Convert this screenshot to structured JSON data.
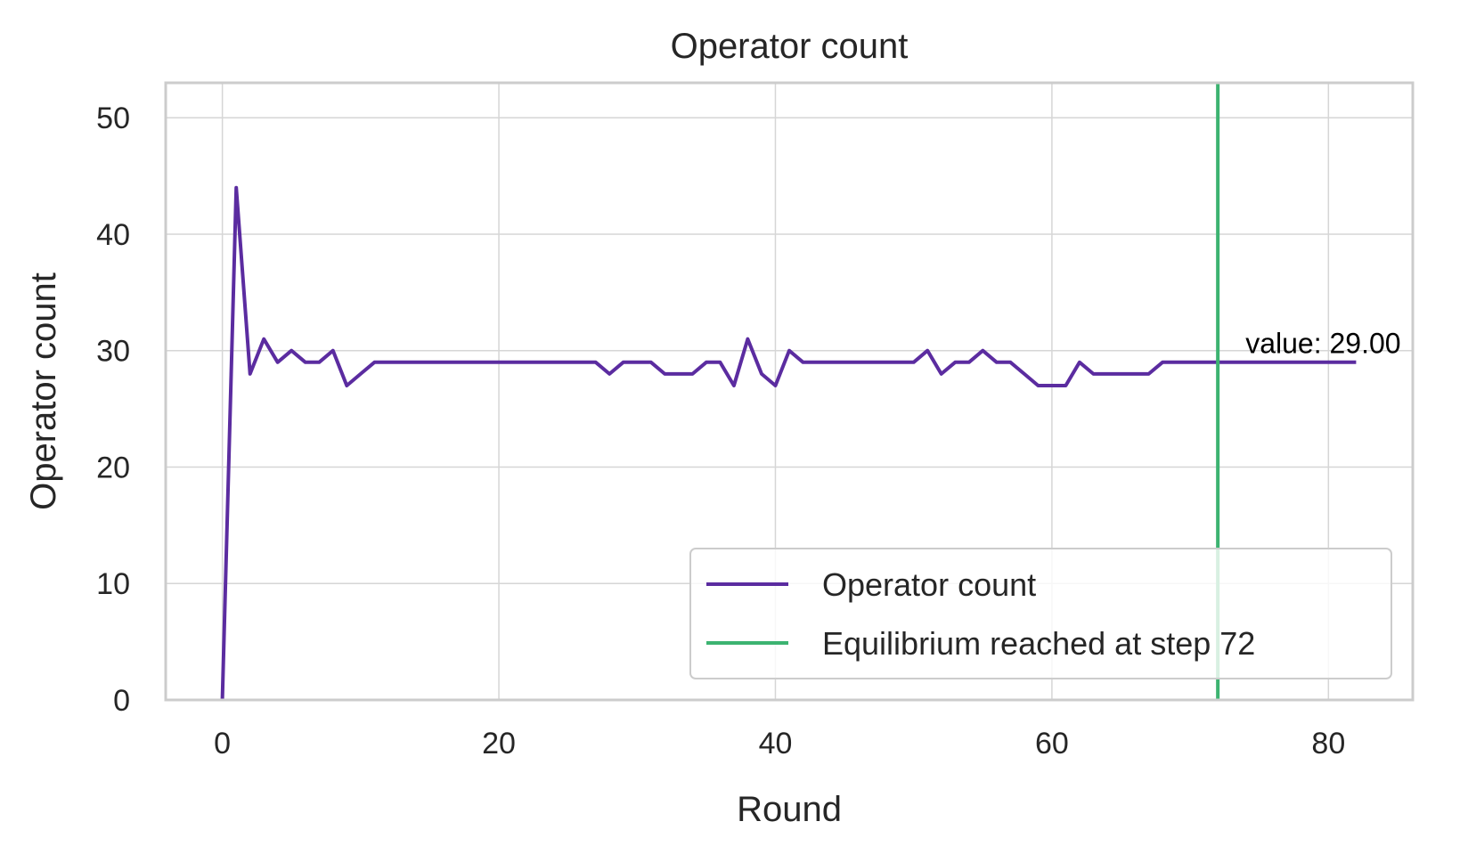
{
  "chart_data": {
    "type": "line",
    "title": "Operator count",
    "xlabel": "Round",
    "ylabel": "Operator count",
    "xlim": [
      -4.1,
      86.1
    ],
    "ylim": [
      0,
      53
    ],
    "xticks": [
      0,
      20,
      40,
      60,
      80
    ],
    "yticks": [
      0,
      10,
      20,
      30,
      40,
      50
    ],
    "grid": true,
    "legend_position": "lower-right",
    "series": [
      {
        "name": "Operator count",
        "color": "#5b2ca0",
        "x": [
          0,
          1,
          2,
          3,
          4,
          5,
          6,
          7,
          8,
          9,
          10,
          11,
          12,
          13,
          14,
          15,
          16,
          17,
          18,
          19,
          20,
          21,
          22,
          23,
          24,
          25,
          26,
          27,
          28,
          29,
          30,
          31,
          32,
          33,
          34,
          35,
          36,
          37,
          38,
          39,
          40,
          41,
          42,
          43,
          44,
          45,
          46,
          47,
          48,
          49,
          50,
          51,
          52,
          53,
          54,
          55,
          56,
          57,
          58,
          59,
          60,
          61,
          62,
          63,
          64,
          65,
          66,
          67,
          68,
          69,
          70,
          71,
          72,
          73,
          74,
          75,
          76,
          77,
          78,
          79,
          80,
          81,
          82
        ],
        "y": [
          0,
          44,
          28,
          31,
          29,
          30,
          29,
          29,
          30,
          27,
          28,
          29,
          29,
          29,
          29,
          29,
          29,
          29,
          29,
          29,
          29,
          29,
          29,
          29,
          29,
          29,
          29,
          29,
          28,
          29,
          29,
          29,
          28,
          28,
          28,
          29,
          29,
          27,
          31,
          28,
          27,
          30,
          29,
          29,
          29,
          29,
          29,
          29,
          29,
          29,
          29,
          30,
          28,
          29,
          29,
          30,
          29,
          29,
          28,
          27,
          27,
          27,
          29,
          28,
          28,
          28,
          28,
          28,
          29,
          29,
          29,
          29,
          29,
          29,
          29,
          29,
          29,
          29,
          29,
          29,
          29,
          29,
          29
        ]
      }
    ],
    "vline": {
      "name": "Equilibrium reached at step 72",
      "x": 72,
      "color": "#3cb371"
    },
    "annotation": {
      "text": "value: 29.00",
      "x": 74,
      "y": 29.8
    }
  }
}
